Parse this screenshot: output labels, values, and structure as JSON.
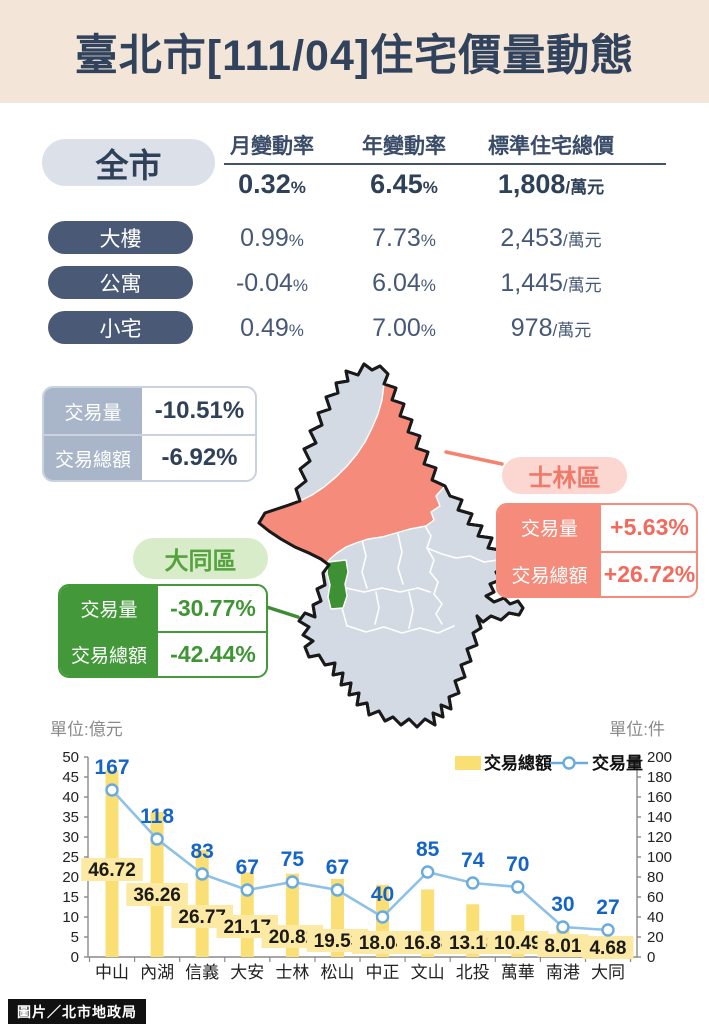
{
  "header": {
    "title": "臺北市[111/04]住宅價量動態"
  },
  "price_table": {
    "scope_label": "全市",
    "columns": [
      "月變動率",
      "年變動率",
      "標準住宅總價"
    ],
    "percent_suffix": "%",
    "price_suffix": "/萬元",
    "rows": [
      {
        "label": "全市",
        "monthly": "0.32",
        "yearly": "6.45",
        "price": "1,808"
      },
      {
        "label": "大樓",
        "monthly": "0.99",
        "yearly": "7.73",
        "price": "2,453"
      },
      {
        "label": "公寓",
        "monthly": "-0.04",
        "yearly": "6.04",
        "price": "1,445"
      },
      {
        "label": "小宅",
        "monthly": "0.49",
        "yearly": "7.00",
        "price": "978"
      }
    ]
  },
  "city_stats": {
    "volume_label": "交易量",
    "volume": "-10.51%",
    "amount_label": "交易總額",
    "amount": "-6.92%"
  },
  "datong": {
    "name": "大同區",
    "volume_label": "交易量",
    "volume": "-30.77%",
    "amount_label": "交易總額",
    "amount": "-42.44%"
  },
  "shilin": {
    "name": "士林區",
    "volume_label": "交易量",
    "volume": "+5.63%",
    "amount_label": "交易總額",
    "amount": "+26.72%"
  },
  "chart_data": {
    "type": "bar+line combo",
    "unit_left": "單位:億元",
    "unit_right": "單位:件",
    "categories": [
      "中山",
      "內湖",
      "信義",
      "大安",
      "士林",
      "松山",
      "中正",
      "文山",
      "北投",
      "萬華",
      "南港",
      "大同"
    ],
    "series": [
      {
        "name": "交易總額",
        "type": "bar",
        "axis": "left",
        "values": [
          46.72,
          36.26,
          26.77,
          21.17,
          20.82,
          19.53,
          18.04,
          16.88,
          13.18,
          10.49,
          8.01,
          4.68
        ]
      },
      {
        "name": "交易量",
        "type": "line",
        "axis": "right",
        "values": [
          167,
          118,
          83,
          67,
          75,
          67,
          40,
          85,
          74,
          70,
          30,
          27
        ]
      }
    ],
    "left_axis": {
      "min": 0,
      "max": 50,
      "step": 5
    },
    "right_axis": {
      "min": 0,
      "max": 200,
      "step": 20
    },
    "legend_position": "top-right",
    "grid": false
  },
  "footer": {
    "credit": "圖片／北市地政局"
  },
  "colors": {
    "beige": "#f3e6d8",
    "navy": "#31435c",
    "pill_dark": "#4a5a76",
    "gray_blue": "#a9b6ca",
    "green": "#43993a",
    "green_light": "#d8ecca",
    "salmon": "#f58b7a",
    "salmon_light": "#fcd7d1",
    "map_gray": "#d4dae3",
    "bar_yellow": "#fadf75",
    "bar_label_bg": "#fbe9a4",
    "line_blue": "#6aabdd",
    "line_light": "#8ec1e8",
    "value_blue": "#1565c8"
  }
}
